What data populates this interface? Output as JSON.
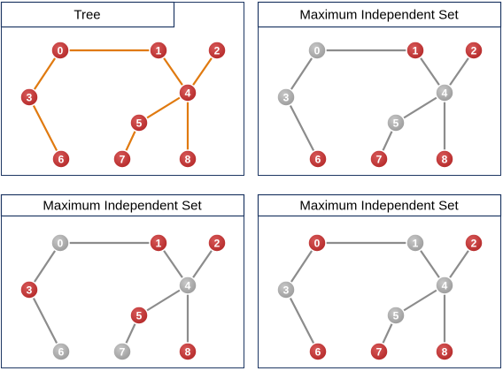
{
  "colors": {
    "tree_edge": "#E07A10",
    "gray_edge": "#8C8C8C",
    "selected_node": "#B52A2A",
    "unselected_node": "#9C9C9C",
    "panel_border": "#1F3864",
    "title_border": "#1F3864"
  },
  "nodes": [
    "0",
    "1",
    "2",
    "3",
    "4",
    "5",
    "6",
    "7",
    "8"
  ],
  "edges": [
    [
      0,
      1
    ],
    [
      0,
      3
    ],
    [
      3,
      6
    ],
    [
      1,
      4
    ],
    [
      2,
      4
    ],
    [
      4,
      5
    ],
    [
      5,
      7
    ],
    [
      4,
      8
    ]
  ],
  "panels": [
    {
      "title": "Tree",
      "edge_style": "tree",
      "selected": [
        0,
        1,
        2,
        3,
        4,
        5,
        6,
        7,
        8
      ]
    },
    {
      "title": "Maximum Independent Set",
      "edge_style": "gray",
      "selected": [
        1,
        2,
        6,
        7,
        8
      ]
    },
    {
      "title": "Maximum Independent Set",
      "edge_style": "gray",
      "selected": [
        1,
        2,
        3,
        5,
        8
      ]
    },
    {
      "title": "Maximum Independent Set",
      "edge_style": "gray",
      "selected": [
        0,
        2,
        6,
        7,
        8
      ]
    }
  ]
}
